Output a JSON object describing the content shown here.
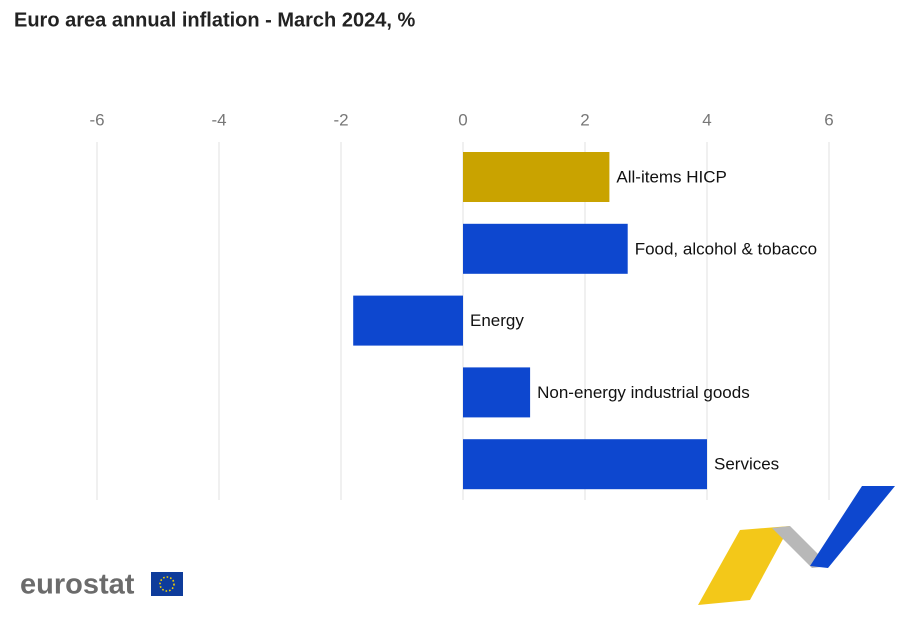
{
  "chart_data": {
    "type": "bar",
    "orientation": "horizontal",
    "title": "Euro area annual inflation - March  2024, %",
    "categories": [
      "All-items HICP",
      "Food, alcohol & tobacco",
      "Energy",
      "Non-energy industrial goods",
      "Services"
    ],
    "values": [
      2.4,
      2.7,
      -1.8,
      1.1,
      4.0
    ],
    "colors": [
      "#c9a300",
      "#0d47cf",
      "#0d47cf",
      "#0d47cf",
      "#0d47cf"
    ],
    "xlim": [
      -6,
      6
    ],
    "xticks": [
      -6,
      -4,
      -2,
      0,
      2,
      4,
      6
    ],
    "grid": true,
    "logo": "eurostat"
  }
}
